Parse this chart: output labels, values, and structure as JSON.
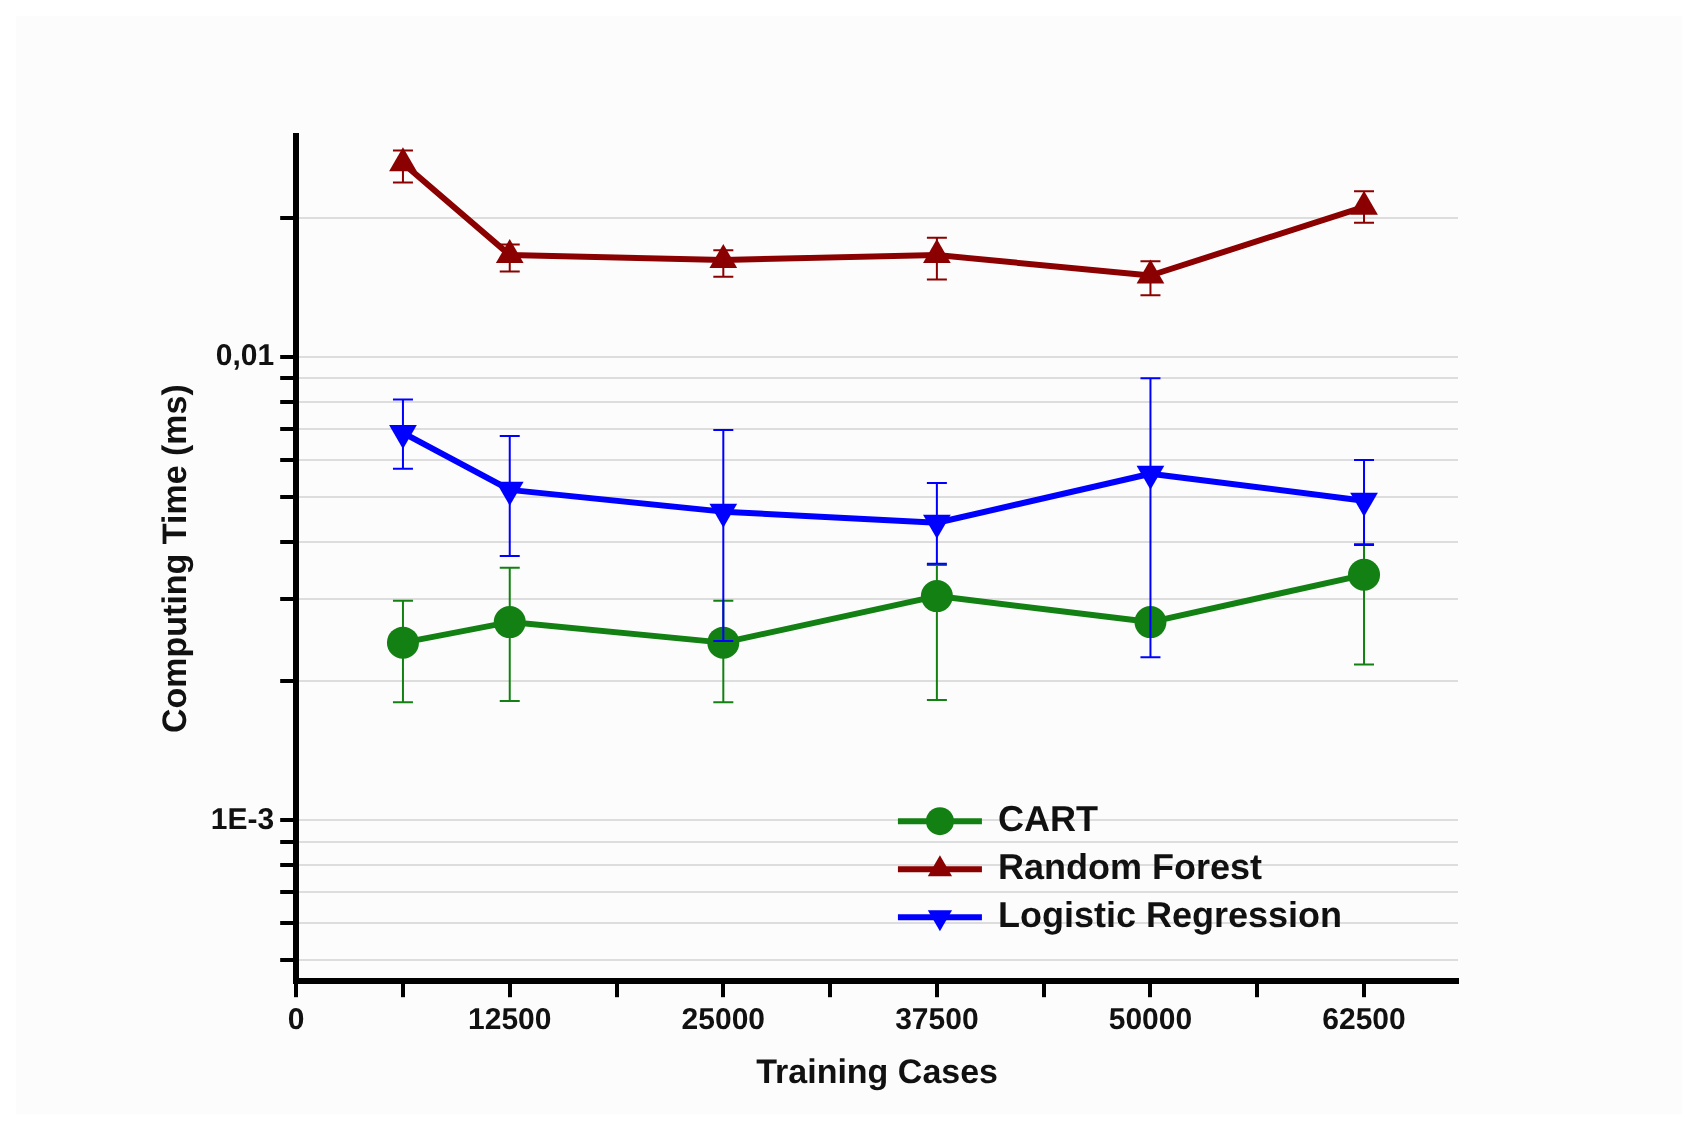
{
  "chart_data": {
    "type": "line",
    "xlabel": "Training Cases",
    "ylabel": "Computing Time (ms)",
    "x": [
      6250,
      12500,
      25000,
      37500,
      50000,
      62500
    ],
    "series": [
      {
        "name": "CART",
        "color": "#138013",
        "marker": "circle",
        "values": [
          0.00242,
          0.00268,
          0.00242,
          0.00305,
          0.00268,
          0.00339
        ],
        "errors": [
          [
            0.0018,
            0.00298
          ],
          [
            0.00181,
            0.00351
          ],
          [
            0.0018,
            0.00298
          ],
          [
            0.00182,
            0.00356
          ],
          null,
          [
            0.00217,
            0.00395
          ]
        ]
      },
      {
        "name": "Random Forest",
        "color": "#8b0000",
        "marker": "triangle",
        "values": [
          0.0262,
          0.0166,
          0.0162,
          0.0166,
          0.015,
          0.0211
        ],
        "errors": [
          [
            0.0238,
            0.0279
          ],
          [
            0.0153,
            0.0175
          ],
          [
            0.0149,
            0.017
          ],
          [
            0.0147,
            0.0181
          ],
          [
            0.0136,
            0.0161
          ],
          [
            0.0195,
            0.0228
          ]
        ]
      },
      {
        "name": "Logistic Regression",
        "color": "#0000ff",
        "marker": "triangle-down",
        "values": [
          0.00686,
          0.00517,
          0.00464,
          0.00439,
          0.0056,
          0.0049
        ],
        "errors": [
          [
            0.00574,
            0.0081
          ],
          [
            0.00372,
            0.00676
          ],
          [
            0.00244,
            0.00696
          ],
          [
            0.00358,
            0.00535
          ],
          [
            0.00225,
            0.009
          ],
          [
            0.00393,
            0.006
          ]
        ]
      }
    ],
    "log": "y",
    "grid": "y",
    "legend": "bottom right",
    "line_style": "solid",
    "xlim": [
      0,
      68000
    ],
    "xticks": [
      0,
      {
        "value": 6250,
        "label": null
      },
      12500,
      {
        "value": 18750,
        "label": null
      },
      25000,
      {
        "value": 31250,
        "label": null
      },
      37500,
      {
        "value": 43750,
        "label": null
      },
      50000,
      {
        "value": 56250,
        "label": null
      },
      62500
    ],
    "ylim": [
      0.00045,
      0.03
    ],
    "yticks": [
      {
        "value": 0.0005,
        "label": null
      },
      {
        "value": 0.0006,
        "label": null
      },
      {
        "value": 0.0007,
        "label": null
      },
      {
        "value": 0.0008,
        "label": null
      },
      {
        "value": 0.0009,
        "label": null
      },
      {
        "value": 0.001,
        "label": "1E-3"
      },
      {
        "value": 0.002,
        "label": null
      },
      {
        "value": 0.003,
        "label": null
      },
      {
        "value": 0.004,
        "label": null
      },
      {
        "value": 0.005,
        "label": null
      },
      {
        "value": 0.006,
        "label": null
      },
      {
        "value": 0.007,
        "label": null
      },
      {
        "value": 0.008,
        "label": null
      },
      {
        "value": 0.009,
        "label": null
      },
      {
        "value": 0.01,
        "label": "0,01"
      },
      {
        "value": 0.02,
        "label": null
      }
    ]
  }
}
